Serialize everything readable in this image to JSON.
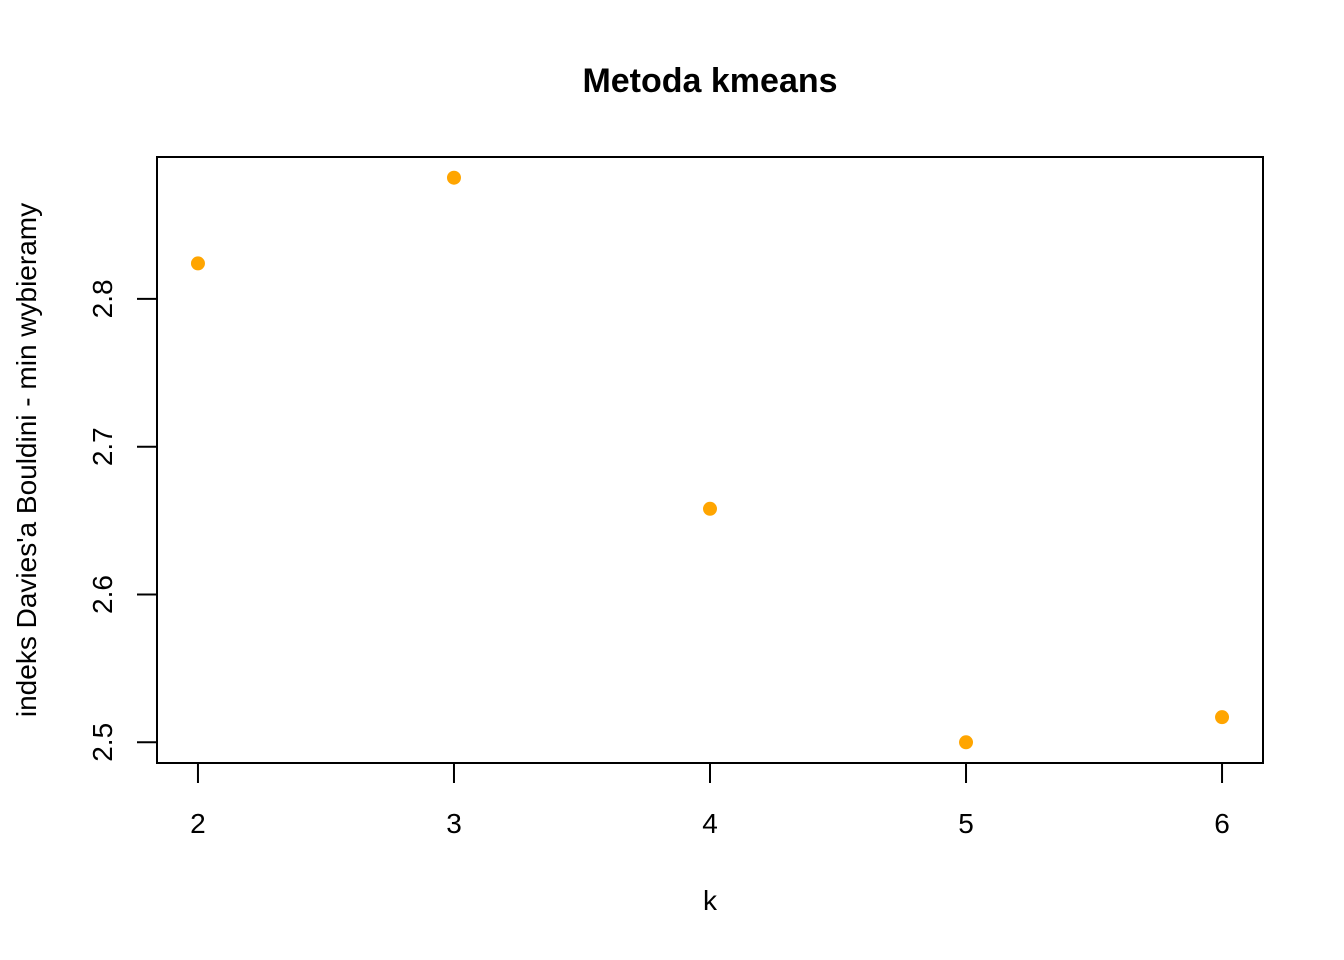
{
  "chart_data": {
    "type": "scatter",
    "title": "Metoda kmeans",
    "xlabel": "k",
    "ylabel": "indeks Davies'a Bouldini - min wybieramy",
    "x": [
      2,
      3,
      4,
      5,
      6
    ],
    "y": [
      2.824,
      2.882,
      2.658,
      2.5,
      2.517
    ],
    "xlim": [
      1.84,
      6.16
    ],
    "ylim": [
      2.486,
      2.896
    ],
    "xticks": [
      2,
      3,
      4,
      5,
      6
    ],
    "yticks": [
      2.5,
      2.6,
      2.7,
      2.8
    ],
    "xtick_labels": [
      "2",
      "3",
      "4",
      "5",
      "6"
    ],
    "ytick_labels": [
      "2.5",
      "2.6",
      "2.7",
      "2.8"
    ],
    "point_color": "#FFA500",
    "grid": false,
    "legend": "none"
  }
}
